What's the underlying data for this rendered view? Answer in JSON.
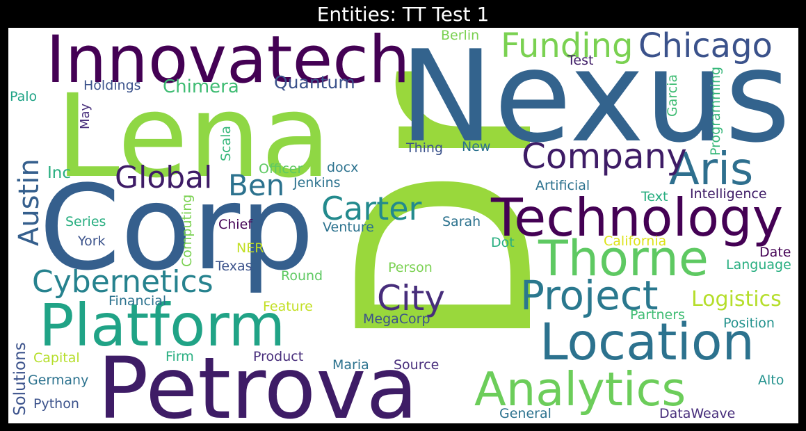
{
  "title": "Entities: TT Test 1",
  "palette": {
    "dark_purple": "#440154",
    "purple": "#472d7b",
    "indigo": "#3b528b",
    "steel_blue": "#2c728e",
    "teal": "#21918c",
    "sea_green": "#28ae80",
    "green": "#5ec962",
    "lime": "#addc30",
    "yellow": "#fde725"
  },
  "words": {
    "dr": "Dr",
    "nexus": "Nexus",
    "corp": "Corp",
    "lena": "Lena",
    "petrova": "Petrova",
    "innovatech": "Innovatech",
    "platform": "Platform",
    "technology": "Technology",
    "location": "Location",
    "thorne": "Thorne",
    "analytics": "Analytics",
    "project": "Project",
    "aris": "Aris",
    "company": "Company",
    "chicago": "Chicago",
    "funding": "Funding",
    "cybernetics": "Cybernetics",
    "carter": "Carter",
    "city": "City",
    "austin": "Austin",
    "global": "Global",
    "ben": "Ben",
    "logistics": "Logistics",
    "chimera": "Chimera",
    "quantum": "Quantum",
    "holdings": "Holdings",
    "berlin": "Berlin",
    "test": "Test",
    "palo": "Palo",
    "may": "May",
    "scala": "Scala",
    "garcia": "Garcia",
    "programming": "Programming",
    "thing": "Thing",
    "new": "New",
    "inc": "Inc",
    "officer": "Officer",
    "docx": "docx",
    "jenkins": "Jenkins",
    "artificial": "Artificial",
    "intelligence": "Intelligence",
    "text": "Text",
    "series": "Series",
    "york": "York",
    "chief": "Chief",
    "computing": "Computing",
    "venture": "Venture",
    "sarah": "Sarah",
    "ner": "NER",
    "dot": "Dot",
    "california": "California",
    "date": "Date",
    "texas": "Texas",
    "person": "Person",
    "language": "Language",
    "round": "Round",
    "financial": "Financial",
    "feature": "Feature",
    "solutions": "Solutions",
    "megacorp": "MegaCorp",
    "partners": "Partners",
    "position": "Position",
    "capital": "Capital",
    "firm": "Firm",
    "product": "Product",
    "maria": "Maria",
    "source": "Source",
    "alto": "Alto",
    "germany": "Germany",
    "python": "Python",
    "general": "General",
    "dataweave": "DataWeave"
  }
}
